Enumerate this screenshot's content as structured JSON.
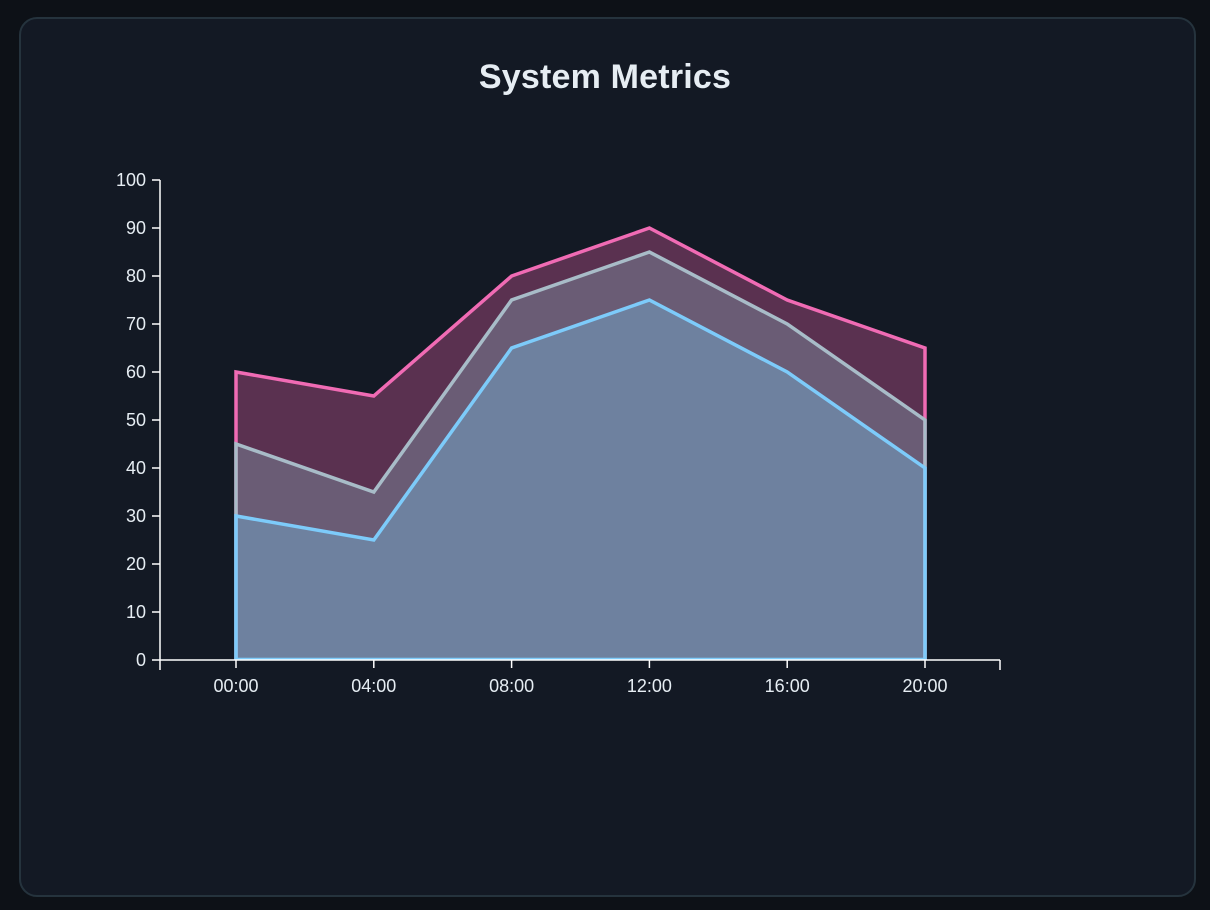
{
  "chart_data": {
    "type": "area",
    "title": "System Metrics",
    "categories": [
      "00:00",
      "04:00",
      "08:00",
      "12:00",
      "16:00",
      "20:00"
    ],
    "series": [
      {
        "values": [
          60,
          55,
          80,
          90,
          75,
          65
        ],
        "color": "#f06bb4",
        "fill": "#5a3150"
      },
      {
        "values": [
          45,
          35,
          75,
          85,
          70,
          50
        ],
        "color": "#a8bcc8",
        "fill": "#6a5c75"
      },
      {
        "values": [
          30,
          25,
          65,
          75,
          60,
          40
        ],
        "color": "#7dcbfa",
        "fill": "#6e819f"
      }
    ],
    "ylim": [
      0,
      100
    ],
    "yticks": [
      0,
      10,
      20,
      30,
      40,
      50,
      60,
      70,
      80,
      90,
      100
    ],
    "grid": false,
    "legend": "none",
    "axis_color": "#ffffff",
    "text_color": "#e6edf3"
  }
}
